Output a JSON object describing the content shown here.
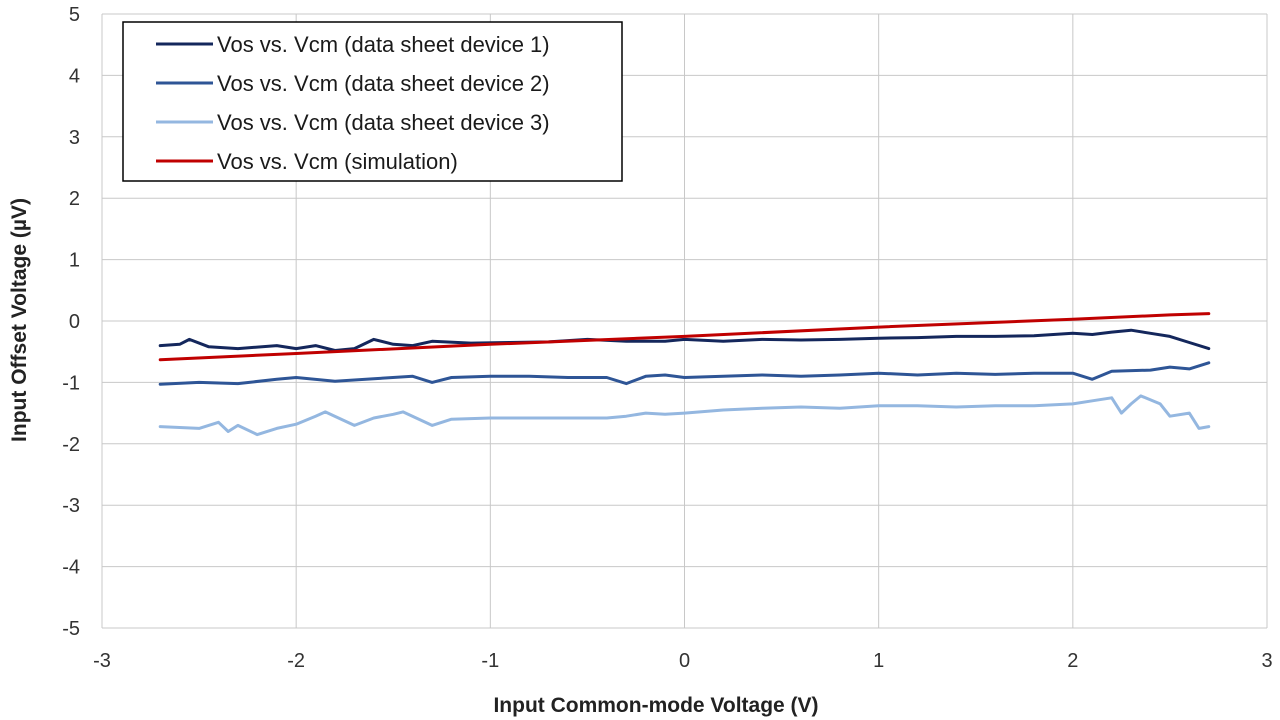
{
  "chart_data": {
    "type": "line",
    "xlabel": "Input Common-mode Voltage (V)",
    "ylabel": "Input Offset Voltage (µV)",
    "xlim": [
      -3,
      3
    ],
    "ylim": [
      -5,
      5
    ],
    "xticks": [
      "-3",
      "-2",
      "-1",
      "0",
      "1",
      "2",
      "3"
    ],
    "yticks": [
      "5",
      "4",
      "3",
      "2",
      "1",
      "0",
      "-1",
      "-2",
      "-3",
      "-4",
      "-5"
    ],
    "grid": true,
    "legend_position": "top-left",
    "series": [
      {
        "name": "Vos vs. Vcm (data sheet device 1)",
        "color": "#14275c",
        "x": [
          -2.7,
          -2.6,
          -2.55,
          -2.45,
          -2.3,
          -2.1,
          -2.0,
          -1.9,
          -1.8,
          -1.7,
          -1.6,
          -1.5,
          -1.4,
          -1.3,
          -1.1,
          -0.9,
          -0.7,
          -0.5,
          -0.3,
          -0.1,
          0.0,
          0.2,
          0.4,
          0.6,
          0.8,
          1.0,
          1.2,
          1.4,
          1.6,
          1.8,
          2.0,
          2.1,
          2.2,
          2.3,
          2.4,
          2.5,
          2.6,
          2.7
        ],
        "y": [
          -0.4,
          -0.38,
          -0.3,
          -0.42,
          -0.45,
          -0.4,
          -0.45,
          -0.4,
          -0.48,
          -0.45,
          -0.3,
          -0.38,
          -0.4,
          -0.33,
          -0.36,
          -0.35,
          -0.34,
          -0.3,
          -0.33,
          -0.33,
          -0.3,
          -0.33,
          -0.3,
          -0.31,
          -0.3,
          -0.28,
          -0.27,
          -0.25,
          -0.25,
          -0.24,
          -0.2,
          -0.22,
          -0.18,
          -0.15,
          -0.2,
          -0.25,
          -0.35,
          -0.45
        ]
      },
      {
        "name": "Vos vs. Vcm (data sheet device 2)",
        "color": "#2e5596",
        "x": [
          -2.7,
          -2.5,
          -2.3,
          -2.1,
          -2.0,
          -1.8,
          -1.6,
          -1.4,
          -1.3,
          -1.2,
          -1.0,
          -0.8,
          -0.6,
          -0.4,
          -0.3,
          -0.2,
          -0.1,
          0.0,
          0.2,
          0.4,
          0.6,
          0.8,
          1.0,
          1.2,
          1.4,
          1.6,
          1.8,
          2.0,
          2.1,
          2.2,
          2.4,
          2.5,
          2.6,
          2.7
        ],
        "y": [
          -1.03,
          -1.0,
          -1.02,
          -0.95,
          -0.92,
          -0.98,
          -0.94,
          -0.9,
          -1.0,
          -0.92,
          -0.9,
          -0.9,
          -0.92,
          -0.92,
          -1.02,
          -0.9,
          -0.88,
          -0.92,
          -0.9,
          -0.88,
          -0.9,
          -0.88,
          -0.85,
          -0.88,
          -0.85,
          -0.87,
          -0.85,
          -0.85,
          -0.95,
          -0.82,
          -0.8,
          -0.75,
          -0.78,
          -0.68
        ]
      },
      {
        "name": "Vos vs. Vcm (data sheet device 3)",
        "color": "#94b7e0",
        "x": [
          -2.7,
          -2.5,
          -2.4,
          -2.35,
          -2.3,
          -2.2,
          -2.1,
          -2.0,
          -1.9,
          -1.85,
          -1.7,
          -1.6,
          -1.5,
          -1.45,
          -1.3,
          -1.2,
          -1.0,
          -0.8,
          -0.6,
          -0.4,
          -0.3,
          -0.2,
          -0.1,
          0.0,
          0.2,
          0.4,
          0.6,
          0.8,
          1.0,
          1.2,
          1.4,
          1.6,
          1.8,
          2.0,
          2.1,
          2.2,
          2.25,
          2.3,
          2.35,
          2.45,
          2.5,
          2.6,
          2.65,
          2.7
        ],
        "y": [
          -1.72,
          -1.75,
          -1.65,
          -1.8,
          -1.7,
          -1.85,
          -1.75,
          -1.68,
          -1.55,
          -1.48,
          -1.7,
          -1.58,
          -1.52,
          -1.48,
          -1.7,
          -1.6,
          -1.58,
          -1.58,
          -1.58,
          -1.58,
          -1.55,
          -1.5,
          -1.52,
          -1.5,
          -1.45,
          -1.42,
          -1.4,
          -1.42,
          -1.38,
          -1.38,
          -1.4,
          -1.38,
          -1.38,
          -1.35,
          -1.3,
          -1.25,
          -1.5,
          -1.35,
          -1.22,
          -1.35,
          -1.55,
          -1.5,
          -1.75,
          -1.72
        ]
      },
      {
        "name": "Vos vs. Vcm (simulation)",
        "color": "#c00000",
        "x": [
          -2.7,
          -2.0,
          -1.0,
          0.0,
          1.0,
          2.0,
          2.5,
          2.7
        ],
        "y": [
          -0.63,
          -0.53,
          -0.38,
          -0.25,
          -0.1,
          0.03,
          0.1,
          0.12
        ]
      }
    ]
  }
}
